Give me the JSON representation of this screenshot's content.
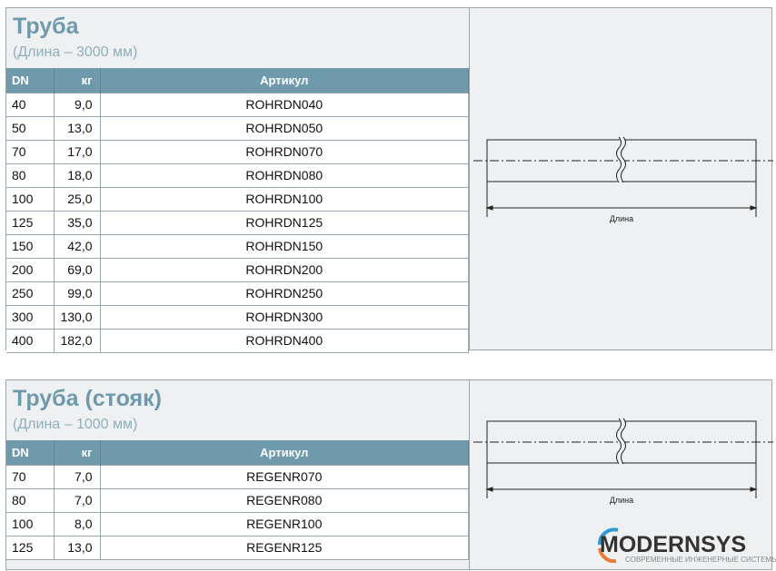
{
  "sections": [
    {
      "title": "Труба",
      "subtitle": "(Длина – 3000 мм)",
      "headers": [
        "DN",
        "кг",
        "Артикул"
      ],
      "drawing_label": "Длина",
      "rows": [
        [
          "40",
          "9,0",
          "ROHRDN040"
        ],
        [
          "50",
          "13,0",
          "ROHRDN050"
        ],
        [
          "70",
          "17,0",
          "ROHRDN070"
        ],
        [
          "80",
          "18,0",
          "ROHRDN080"
        ],
        [
          "100",
          "25,0",
          "ROHRDN100"
        ],
        [
          "125",
          "35,0",
          "ROHRDN125"
        ],
        [
          "150",
          "42,0",
          "ROHRDN150"
        ],
        [
          "200",
          "69,0",
          "ROHRDN200"
        ],
        [
          "250",
          "99,0",
          "ROHRDN250"
        ],
        [
          "300",
          "130,0",
          "ROHRDN300"
        ],
        [
          "400",
          "182,0",
          "ROHRDN400"
        ]
      ]
    },
    {
      "title": "Труба (стояк)",
      "subtitle": "(Длина – 1000 мм)",
      "headers": [
        "DN",
        "кг",
        "Артикул"
      ],
      "drawing_label": "Длина",
      "rows": [
        [
          "70",
          "7,0",
          "REGENR070"
        ],
        [
          "80",
          "7,0",
          "REGENR080"
        ],
        [
          "100",
          "8,0",
          "REGENR100"
        ],
        [
          "125",
          "13,0",
          "REGENR125"
        ]
      ]
    }
  ],
  "watermark": {
    "brand": "MODERNSYS",
    "tagline": "СОВРЕМЕННЫЕ ИНЖЕНЕРНЫЕ СИСТЕМЫ"
  },
  "colors": {
    "header": "#6f9aab",
    "title": "#6f9aab",
    "panel": "#eef0f2"
  }
}
